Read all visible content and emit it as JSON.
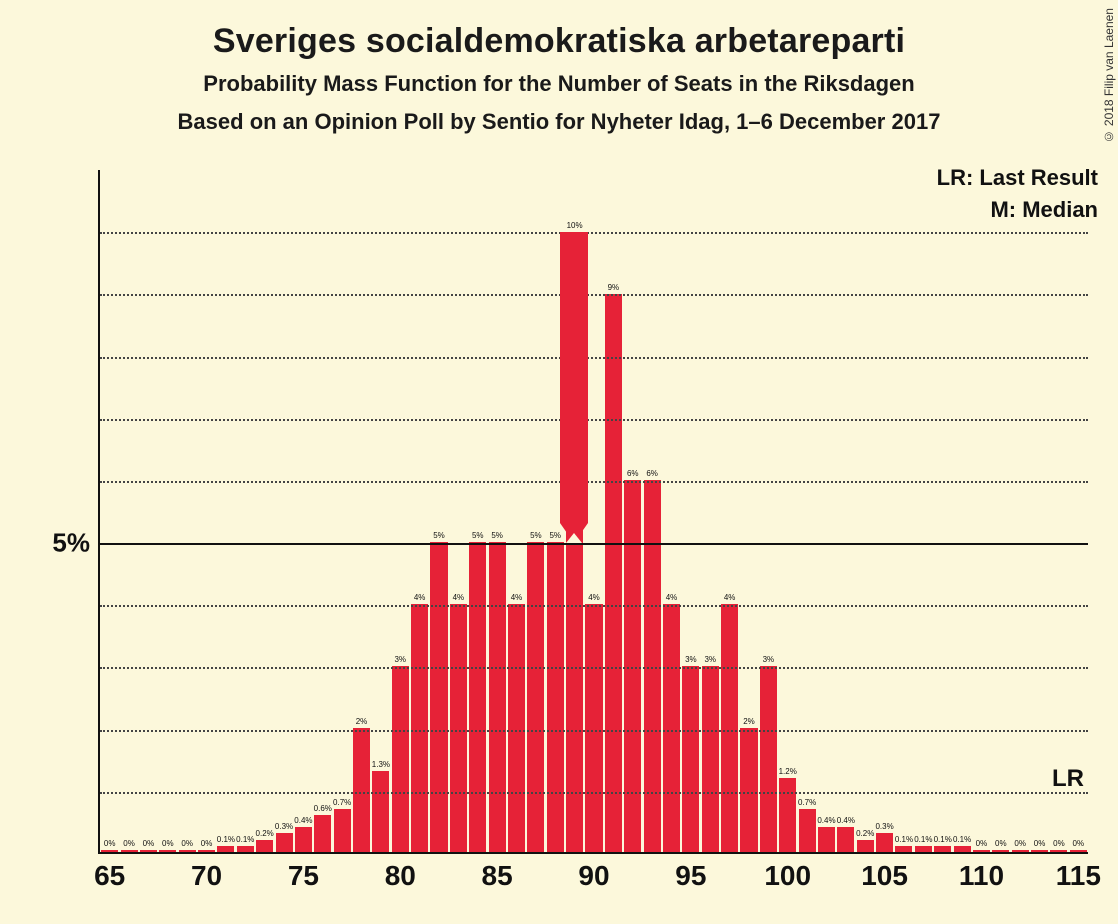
{
  "title": "Sveriges socialdemokratiska arbetareparti",
  "subtitle1": "Probability Mass Function for the Number of Seats in the Riksdagen",
  "subtitle2": "Based on an Opinion Poll by Sentio for Nyheter Idag, 1–6 December 2017",
  "copyright": "© 2018 Filip van Laenen",
  "legend": {
    "lr": "LR: Last Result",
    "m": "M: Median"
  },
  "chart": {
    "type": "bar",
    "bar_color": "#e62237",
    "background_color": "#fcf8db",
    "grid_color": "#444444",
    "axis_color": "#111111",
    "x_min": 65,
    "x_max": 115,
    "y_max_percent": 11,
    "y_label_major": "5%",
    "y_grid_values": [
      1,
      2,
      3,
      4,
      5,
      6,
      7,
      8,
      9,
      10
    ],
    "x_ticks": [
      65,
      70,
      75,
      80,
      85,
      90,
      95,
      100,
      105,
      110,
      115
    ],
    "bar_gap_ratio": 0.12,
    "median_seat": 89,
    "median_arrow_top_percent": 10,
    "median_arrow_bottom_percent": 5,
    "lr_label_text": "LR",
    "lr_label_y_percent": 1.2,
    "bars": [
      {
        "x": 65,
        "v": 0,
        "label": "0%"
      },
      {
        "x": 66,
        "v": 0,
        "label": "0%"
      },
      {
        "x": 67,
        "v": 0,
        "label": "0%"
      },
      {
        "x": 68,
        "v": 0,
        "label": "0%"
      },
      {
        "x": 69,
        "v": 0,
        "label": "0%"
      },
      {
        "x": 70,
        "v": 0,
        "label": "0%"
      },
      {
        "x": 71,
        "v": 0.1,
        "label": "0.1%"
      },
      {
        "x": 72,
        "v": 0.1,
        "label": "0.1%"
      },
      {
        "x": 73,
        "v": 0.2,
        "label": "0.2%"
      },
      {
        "x": 74,
        "v": 0.3,
        "label": "0.3%"
      },
      {
        "x": 75,
        "v": 0.4,
        "label": "0.4%"
      },
      {
        "x": 76,
        "v": 0.6,
        "label": "0.6%"
      },
      {
        "x": 77,
        "v": 0.7,
        "label": "0.7%"
      },
      {
        "x": 78,
        "v": 2,
        "label": "2%"
      },
      {
        "x": 79,
        "v": 1.3,
        "label": "1.3%"
      },
      {
        "x": 80,
        "v": 3,
        "label": "3%"
      },
      {
        "x": 81,
        "v": 4,
        "label": "4%"
      },
      {
        "x": 82,
        "v": 5,
        "label": "5%"
      },
      {
        "x": 83,
        "v": 4,
        "label": "4%"
      },
      {
        "x": 84,
        "v": 5,
        "label": "5%"
      },
      {
        "x": 85,
        "v": 5,
        "label": "5%"
      },
      {
        "x": 86,
        "v": 4,
        "label": "4%"
      },
      {
        "x": 87,
        "v": 5,
        "label": "5%"
      },
      {
        "x": 88,
        "v": 5,
        "label": "5%"
      },
      {
        "x": 89,
        "v": 10,
        "label": "10%"
      },
      {
        "x": 90,
        "v": 4,
        "label": "4%"
      },
      {
        "x": 91,
        "v": 9,
        "label": "9%"
      },
      {
        "x": 92,
        "v": 6,
        "label": "6%"
      },
      {
        "x": 93,
        "v": 6,
        "label": "6%"
      },
      {
        "x": 94,
        "v": 4,
        "label": "4%"
      },
      {
        "x": 95,
        "v": 3,
        "label": "3%"
      },
      {
        "x": 96,
        "v": 3,
        "label": "3%"
      },
      {
        "x": 97,
        "v": 4,
        "label": "4%"
      },
      {
        "x": 98,
        "v": 2,
        "label": "2%"
      },
      {
        "x": 99,
        "v": 3,
        "label": "3%"
      },
      {
        "x": 100,
        "v": 1.2,
        "label": "1.2%"
      },
      {
        "x": 101,
        "v": 0.7,
        "label": "0.7%"
      },
      {
        "x": 102,
        "v": 0.4,
        "label": "0.4%"
      },
      {
        "x": 103,
        "v": 0.4,
        "label": "0.4%"
      },
      {
        "x": 104,
        "v": 0.2,
        "label": "0.2%"
      },
      {
        "x": 105,
        "v": 0.3,
        "label": "0.3%"
      },
      {
        "x": 106,
        "v": 0.1,
        "label": "0.1%"
      },
      {
        "x": 107,
        "v": 0.1,
        "label": "0.1%"
      },
      {
        "x": 108,
        "v": 0.1,
        "label": "0.1%"
      },
      {
        "x": 109,
        "v": 0.1,
        "label": "0.1%"
      },
      {
        "x": 110,
        "v": 0,
        "label": "0%"
      },
      {
        "x": 111,
        "v": 0,
        "label": "0%"
      },
      {
        "x": 112,
        "v": 0,
        "label": "0%"
      },
      {
        "x": 113,
        "v": 0,
        "label": "0%"
      },
      {
        "x": 114,
        "v": 0,
        "label": "0%"
      },
      {
        "x": 115,
        "v": 0,
        "label": "0%"
      }
    ]
  }
}
